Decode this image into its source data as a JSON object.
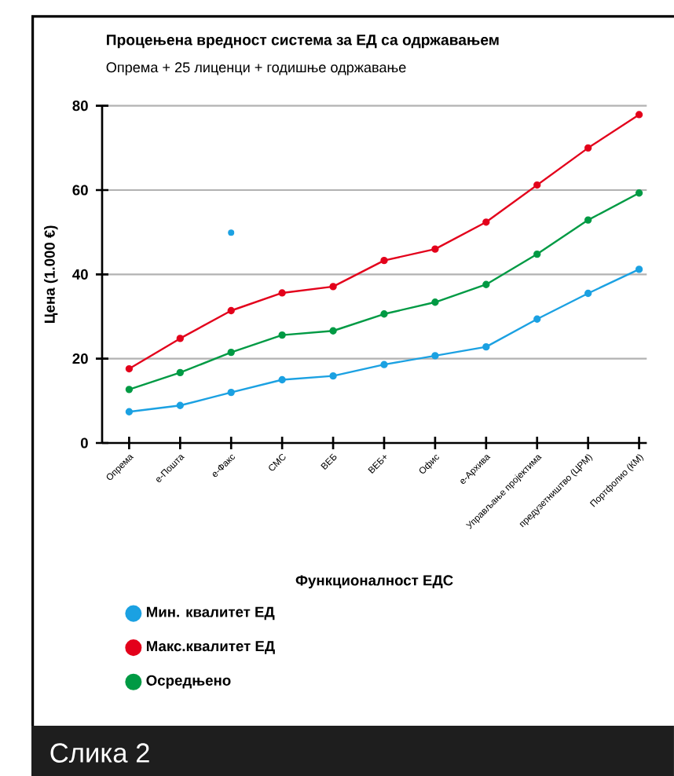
{
  "chart_data": {
    "type": "line",
    "title": "Процењена вредност система за ЕД са одржавањем",
    "subtitle": "Опрема + 25 лиценци + годишње одржавање",
    "xlabel": "Функционалност ЕДС",
    "ylabel": "Цена (1.000 €)",
    "categories": [
      "Опрема",
      "е-Пошта",
      "е-Факс",
      "СМС",
      "ВЕБ",
      "ВЕБ+",
      "Офис",
      "е-Архива",
      "Управљање пројектима",
      "предузетништво (ЦРМ)",
      "Портфолио (КМ)"
    ],
    "series": [
      {
        "name": "Мин. квалитет ЕД",
        "color": "#1ba1e2",
        "values": [
          7.4,
          8.9,
          12.0,
          15.0,
          15.9,
          18.6,
          20.7,
          22.8,
          29.4,
          35.5,
          41.2
        ]
      },
      {
        "name": "Макс.квалитет ЕД",
        "color": "#e3001b",
        "values": [
          17.6,
          24.8,
          31.4,
          35.6,
          37.1,
          43.3,
          46.0,
          52.4,
          61.2,
          70.0,
          77.9
        ]
      },
      {
        "name": "Осредњено",
        "color": "#009a44",
        "values": [
          12.7,
          16.7,
          21.5,
          25.6,
          26.6,
          30.6,
          33.4,
          37.6,
          44.8,
          52.9,
          59.3
        ]
      },
      {
        "type": "scatter",
        "color": "#1ba1e2",
        "values": [
          null,
          null,
          49.9,
          null,
          null,
          null,
          null,
          null,
          null,
          null,
          null
        ]
      }
    ],
    "ylim": [
      0,
      80
    ],
    "yticks": [
      0,
      20,
      40,
      60,
      80
    ],
    "grid": "y",
    "legend": "bottom left",
    "marker": "circle",
    "line_style": "solid",
    "annotations": [
      "Слика 2"
    ]
  }
}
